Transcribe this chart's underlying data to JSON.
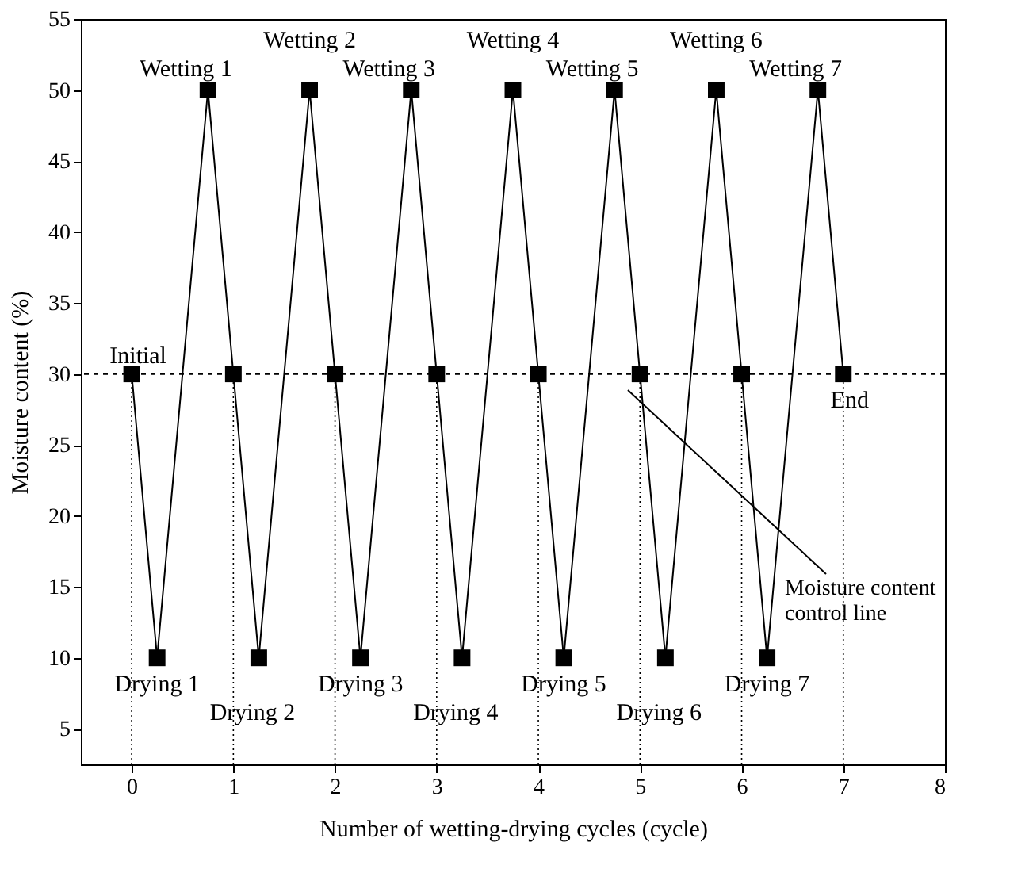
{
  "chart_data": {
    "type": "line",
    "xlabel": "Number of wetting-drying cycles (cycle)",
    "ylabel": "Moisture content (%)",
    "x": [
      0,
      0.25,
      0.75,
      1,
      1.25,
      1.75,
      2,
      2.25,
      2.75,
      3,
      3.25,
      3.75,
      4,
      4.25,
      4.75,
      5,
      5.25,
      5.75,
      6,
      6.25,
      6.75,
      7
    ],
    "series": [
      {
        "color": "#000000",
        "values": [
          30,
          10,
          50,
          30,
          10,
          50,
          30,
          10,
          50,
          30,
          10,
          50,
          30,
          10,
          50,
          30,
          10,
          50,
          30,
          10,
          50,
          30
        ]
      }
    ],
    "marker": "square",
    "line_style": "solid",
    "grid": false,
    "xlim": [
      -0.5,
      8
    ],
    "xticks": [
      0,
      1,
      2,
      3,
      4,
      5,
      6,
      7,
      8
    ],
    "ylim": [
      2.5,
      55
    ],
    "yticks": [
      5,
      10,
      15,
      20,
      25,
      30,
      35,
      40,
      45,
      50,
      55
    ],
    "ref_lines": [
      {
        "axis": "y",
        "value": 30,
        "line_style": "dashed"
      },
      {
        "axis": "x",
        "value": 0,
        "line_style": "dotted"
      },
      {
        "axis": "x",
        "value": 1,
        "line_style": "dotted"
      },
      {
        "axis": "x",
        "value": 2,
        "line_style": "dotted"
      },
      {
        "axis": "x",
        "value": 3,
        "line_style": "dotted"
      },
      {
        "axis": "x",
        "value": 4,
        "line_style": "dotted"
      },
      {
        "axis": "x",
        "value": 5,
        "line_style": "dotted"
      },
      {
        "axis": "x",
        "value": 6,
        "line_style": "dotted"
      },
      {
        "axis": "x",
        "value": 7,
        "line_style": "dotted"
      }
    ],
    "annotations": [
      {
        "text": "Initial",
        "x": 0,
        "y": 30
      },
      {
        "text": "End",
        "x": 7,
        "y": 30
      },
      {
        "text": "Wetting 1",
        "x": 0.75,
        "y": 50
      },
      {
        "text": "Wetting 2",
        "x": 1.75,
        "y": 50
      },
      {
        "text": "Wetting 3",
        "x": 2.75,
        "y": 50
      },
      {
        "text": "Wetting 4",
        "x": 3.75,
        "y": 50
      },
      {
        "text": "Wetting 5",
        "x": 4.75,
        "y": 50
      },
      {
        "text": "Wetting 6",
        "x": 5.75,
        "y": 50
      },
      {
        "text": "Wetting 7",
        "x": 6.75,
        "y": 50
      },
      {
        "text": "Drying 1",
        "x": 0.25,
        "y": 10
      },
      {
        "text": "Drying 2",
        "x": 1.25,
        "y": 10
      },
      {
        "text": "Drying 3",
        "x": 2.25,
        "y": 10
      },
      {
        "text": "Drying 4",
        "x": 3.25,
        "y": 10
      },
      {
        "text": "Drying 5",
        "x": 4.25,
        "y": 10
      },
      {
        "text": "Drying 6",
        "x": 5.25,
        "y": 10
      },
      {
        "text": "Drying 7",
        "x": 6.25,
        "y": 10
      },
      "Moisture content\ncontrol line"
    ]
  }
}
